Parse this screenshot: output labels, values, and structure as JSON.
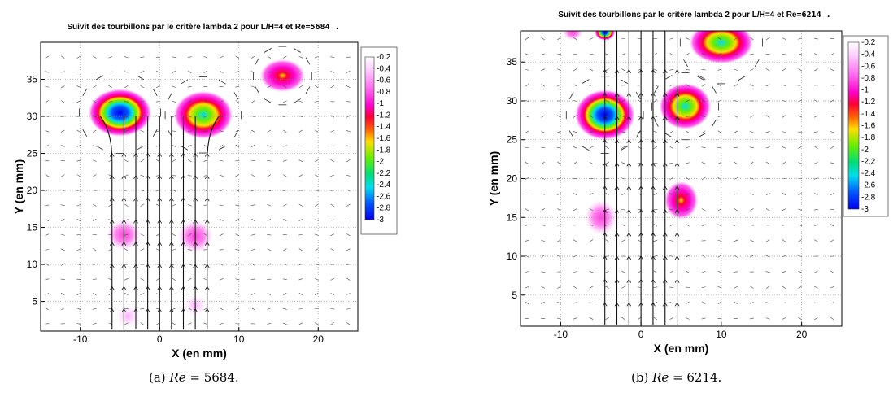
{
  "chart_data": [
    {
      "type": "vector-contour",
      "title_prefix": "Suivit des tourbillons par le critère lambda 2 pour L/H=4 et Re",
      "title_value": "=5684 .",
      "xlabel": "X (en mm)",
      "ylabel": "Y (en mm)",
      "xlim": [
        -15,
        25
      ],
      "ylim": [
        1,
        40
      ],
      "xticks": [
        -10,
        0,
        10,
        20
      ],
      "yticks": [
        5,
        10,
        15,
        20,
        25,
        30,
        35
      ],
      "grid": "dotted",
      "colorbar": {
        "min": -3,
        "max": 0,
        "labels": [
          "-0.2",
          "-0.4",
          "-0.6",
          "-0.8",
          "-1",
          "-1.2",
          "-1.4",
          "-1.6",
          "-1.8",
          "-2",
          "-2.2",
          "-2.4",
          "-2.6",
          "-2.8",
          "-3"
        ]
      },
      "vortices": [
        {
          "x": -5,
          "y": 30.5,
          "rx": 3.2,
          "ry": 2.6,
          "lambda2_min": -3.0
        },
        {
          "x": 5.5,
          "y": 30.2,
          "rx": 3.0,
          "ry": 2.6,
          "lambda2_min": -2.2
        },
        {
          "x": 15.5,
          "y": 35.5,
          "rx": 2.3,
          "ry": 1.8,
          "lambda2_min": -1.1
        },
        {
          "x": -4.5,
          "y": 14.0,
          "rx": 1.7,
          "ry": 1.7,
          "lambda2_min": -0.5
        },
        {
          "x": 4.5,
          "y": 13.8,
          "rx": 1.8,
          "ry": 1.8,
          "lambda2_min": -0.5
        },
        {
          "x": -4,
          "y": 3.0,
          "rx": 1.3,
          "ry": 1.3,
          "lambda2_min": -0.3
        },
        {
          "x": 4.5,
          "y": 4.5,
          "rx": 1.2,
          "ry": 1.2,
          "lambda2_min": -0.3
        }
      ],
      "jets_x": [
        -6,
        -4.5,
        -3,
        -1.5,
        0,
        1.5,
        3,
        4.5,
        6
      ],
      "jet_top": 28
    },
    {
      "type": "vector-contour",
      "title_prefix": "Suivit des tourbillons par le critère lambda 2 pour L/H=4 et Re",
      "title_value": "=6214 .",
      "xlabel": "X (en mm)",
      "ylabel": "Y (en mm)",
      "xlim": [
        -15,
        25
      ],
      "ylim": [
        1,
        39
      ],
      "xticks": [
        -10,
        0,
        10,
        20
      ],
      "yticks": [
        5,
        10,
        15,
        20,
        25,
        30,
        35
      ],
      "grid": "dotted",
      "colorbar": {
        "min": -3,
        "max": 0,
        "labels": [
          "-0.2",
          "-0.4",
          "-0.6",
          "-0.8",
          "-1",
          "-1.2",
          "-1.4",
          "-1.6",
          "-1.8",
          "-2",
          "-2.2",
          "-2.4",
          "-2.6",
          "-2.8",
          "-3"
        ]
      },
      "vortices": [
        {
          "x": -4.5,
          "y": 28.2,
          "rx": 3.0,
          "ry": 2.6,
          "lambda2_min": -3.0
        },
        {
          "x": 5.5,
          "y": 29.3,
          "rx": 2.6,
          "ry": 2.4,
          "lambda2_min": -2.6
        },
        {
          "x": 10,
          "y": 37.5,
          "rx": 3.2,
          "ry": 2.2,
          "lambda2_min": -2.6
        },
        {
          "x": 5,
          "y": 17.2,
          "rx": 1.7,
          "ry": 2.0,
          "lambda2_min": -1.3
        },
        {
          "x": -5,
          "y": 15.0,
          "rx": 1.6,
          "ry": 1.8,
          "lambda2_min": -0.7
        },
        {
          "x": -4.5,
          "y": 38.8,
          "rx": 1.0,
          "ry": 0.8,
          "lambda2_min": -2.8
        },
        {
          "x": -8.5,
          "y": 38.8,
          "rx": 1.0,
          "ry": 0.8,
          "lambda2_min": -0.7
        }
      ],
      "jets_x": [
        -4.5,
        -3,
        -1.5,
        0,
        1.5,
        3,
        4.5
      ],
      "jet_top": 39
    }
  ],
  "captions": [
    {
      "label": "(a) ",
      "var": "Re",
      "value": " = 5684."
    },
    {
      "label": "(b) ",
      "var": "Re",
      "value": " = 6214."
    }
  ],
  "colormap": [
    "#ffffff",
    "#ffccff",
    "#ff66ee",
    "#ff00cc",
    "#ff0033",
    "#ff6600",
    "#ffdd00",
    "#66ee00",
    "#00dd77",
    "#00ddee",
    "#0055ff",
    "#0000ee"
  ]
}
